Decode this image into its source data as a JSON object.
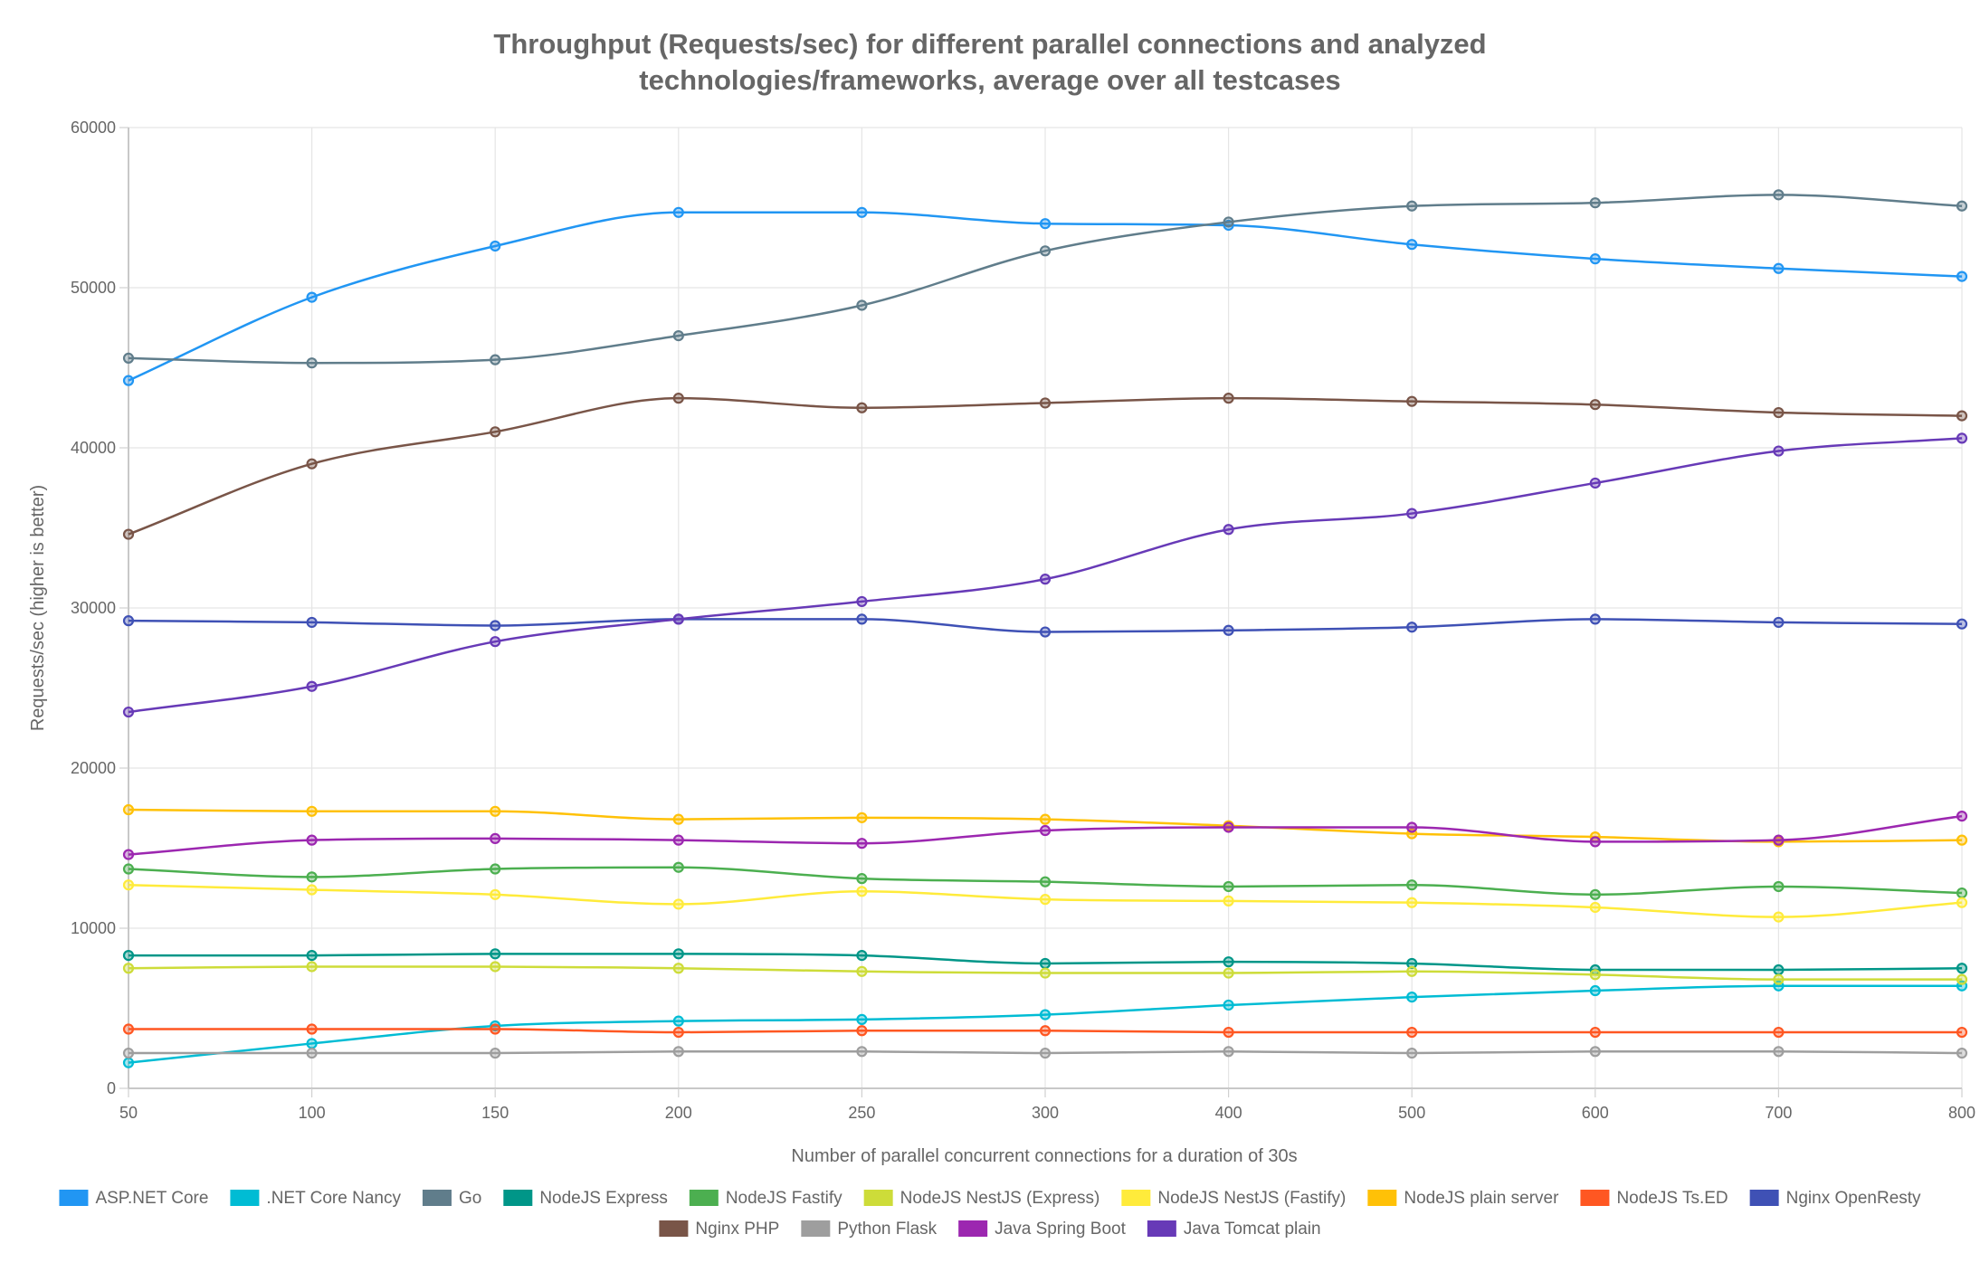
{
  "chart_data": {
    "type": "line",
    "title": [
      "Throughput (Requests/sec) for different parallel connections and analyzed",
      "technologies/frameworks, average over all testcases"
    ],
    "xlabel": "Number of parallel concurrent connections for a duration of 30s",
    "ylabel": "Requests/sec (higher is better)",
    "categories": [
      "50",
      "100",
      "150",
      "200",
      "250",
      "300",
      "400",
      "500",
      "600",
      "700",
      "800"
    ],
    "ylim": [
      0,
      60000
    ],
    "yticks": [
      0,
      10000,
      20000,
      30000,
      40000,
      50000,
      60000
    ],
    "grid": true,
    "legend_position": "bottom",
    "series": [
      {
        "name": "ASP.NET Core",
        "color": "#2196F3",
        "values": [
          44200,
          49400,
          52600,
          54700,
          54700,
          54000,
          53900,
          52700,
          51800,
          51200,
          50700
        ]
      },
      {
        "name": ".NET Core Nancy",
        "color": "#00BCD4",
        "values": [
          1600,
          2800,
          3900,
          4200,
          4300,
          4600,
          5200,
          5700,
          6100,
          6400,
          6400
        ]
      },
      {
        "name": "Go",
        "color": "#607D8B",
        "values": [
          45600,
          45300,
          45500,
          47000,
          48900,
          52300,
          54100,
          55100,
          55300,
          55800,
          55100
        ]
      },
      {
        "name": "NodeJS Express",
        "color": "#009688",
        "values": [
          8300,
          8300,
          8400,
          8400,
          8300,
          7800,
          7900,
          7800,
          7400,
          7400,
          7500
        ]
      },
      {
        "name": "NodeJS Fastify",
        "color": "#4CAF50",
        "values": [
          13700,
          13200,
          13700,
          13800,
          13100,
          12900,
          12600,
          12700,
          12100,
          12600,
          12200
        ]
      },
      {
        "name": "NodeJS NestJS (Express)",
        "color": "#CDDC39",
        "values": [
          7500,
          7600,
          7600,
          7500,
          7300,
          7200,
          7200,
          7300,
          7100,
          6800,
          6800
        ]
      },
      {
        "name": "NodeJS NestJS (Fastify)",
        "color": "#FFEB3B",
        "values": [
          12700,
          12400,
          12100,
          11500,
          12300,
          11800,
          11700,
          11600,
          11300,
          10700,
          11600
        ]
      },
      {
        "name": "NodeJS plain server",
        "color": "#FFC107",
        "values": [
          17400,
          17300,
          17300,
          16800,
          16900,
          16800,
          16400,
          15900,
          15700,
          15400,
          15500
        ]
      },
      {
        "name": "NodeJS Ts.ED",
        "color": "#FF5722",
        "values": [
          3700,
          3700,
          3700,
          3500,
          3600,
          3600,
          3500,
          3500,
          3500,
          3500,
          3500
        ]
      },
      {
        "name": "Nginx OpenResty",
        "color": "#3F51B5",
        "values": [
          29200,
          29100,
          28900,
          29300,
          29300,
          28500,
          28600,
          28800,
          29300,
          29100,
          29000
        ]
      },
      {
        "name": "Nginx PHP",
        "color": "#795548",
        "values": [
          34600,
          39000,
          41000,
          43100,
          42500,
          42800,
          43100,
          42900,
          42700,
          42200,
          42000
        ]
      },
      {
        "name": "Python Flask",
        "color": "#9E9E9E",
        "values": [
          2200,
          2200,
          2200,
          2300,
          2300,
          2200,
          2300,
          2200,
          2300,
          2300,
          2200
        ]
      },
      {
        "name": "Java Spring Boot",
        "color": "#9C27B0",
        "values": [
          14600,
          15500,
          15600,
          15500,
          15300,
          16100,
          16300,
          16300,
          15400,
          15500,
          17000
        ]
      },
      {
        "name": "Java Tomcat plain",
        "color": "#673AB7",
        "values": [
          23500,
          25100,
          27900,
          29300,
          30400,
          31800,
          34900,
          35900,
          37800,
          39800,
          40600
        ]
      }
    ]
  }
}
